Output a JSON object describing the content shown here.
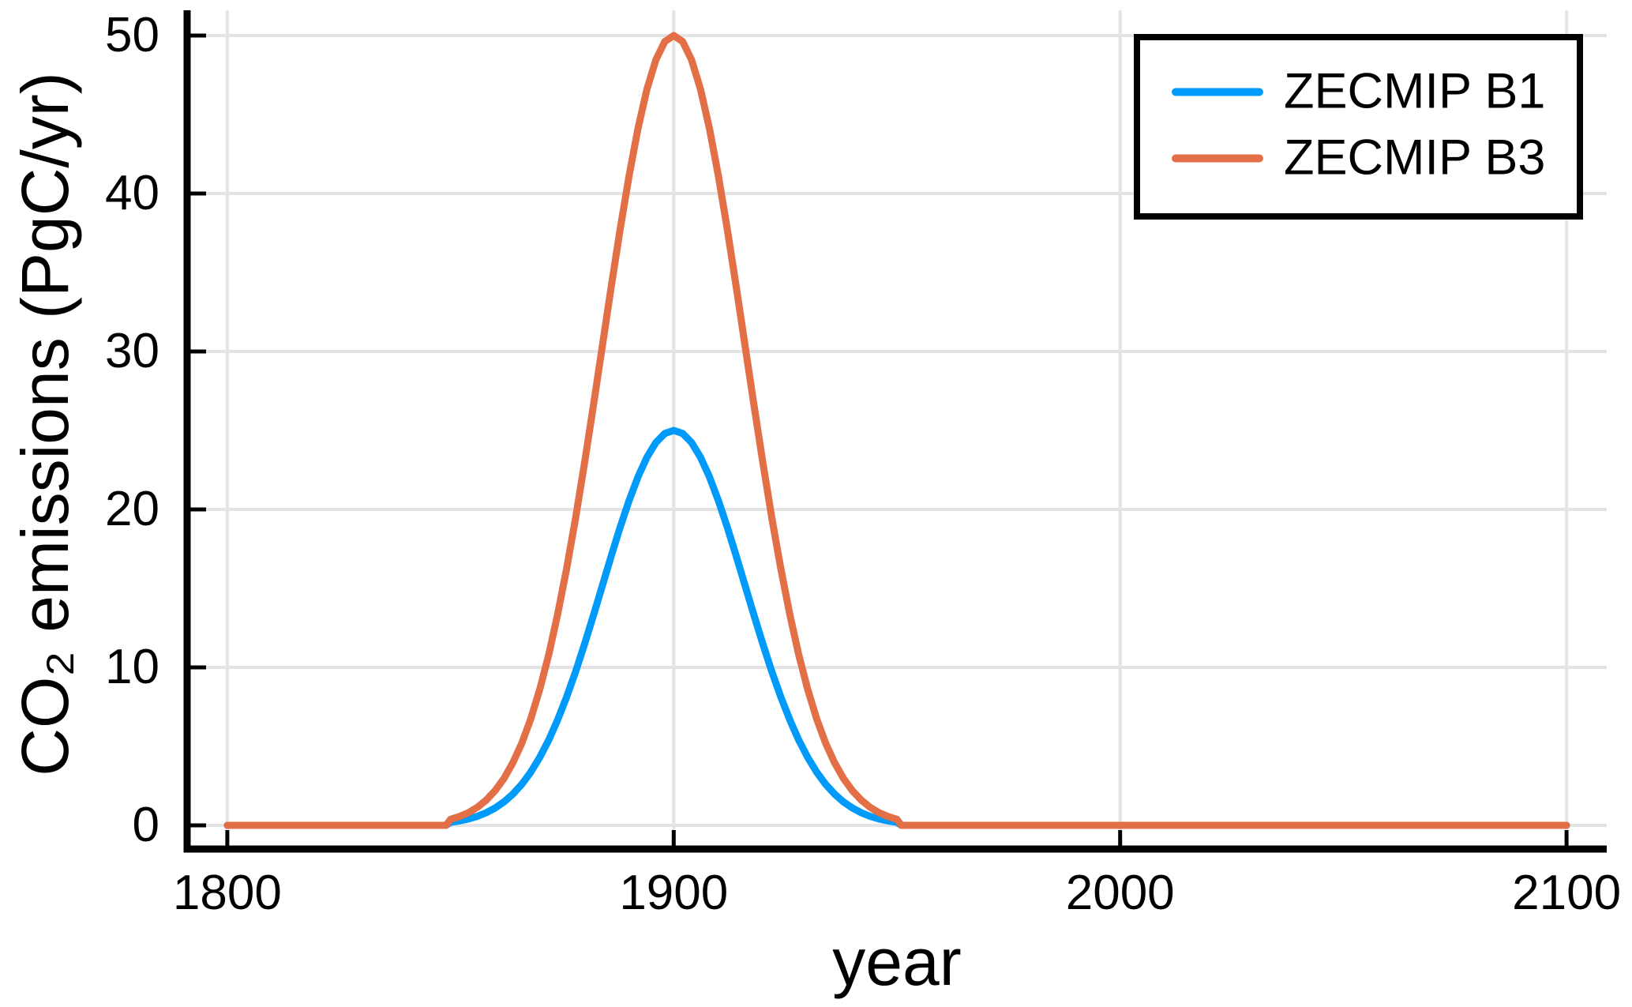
{
  "figure": {
    "background": "#FFFFFF"
  },
  "chart_data": {
    "type": "line",
    "title": "",
    "xlabel": "year",
    "ylabel": "CO₂ emissions (PgC/yr)",
    "xlim": [
      1791,
      2109
    ],
    "ylim": [
      -1.5,
      51.6
    ],
    "xticks": [
      1800,
      1900,
      2000,
      2100
    ],
    "xtick_labels": [
      "1800",
      "1900",
      "2000",
      "2100"
    ],
    "yticks": [
      0,
      10,
      20,
      30,
      40,
      50
    ],
    "ytick_labels": [
      "0",
      "10",
      "20",
      "30",
      "40",
      "50"
    ],
    "grid": true,
    "grid_color": "#E4E4E4",
    "axis_color": "#000000",
    "legend": {
      "position": "top-right",
      "background": "#FFFFFF",
      "border_color": "#000000",
      "entries": [
        {
          "label": "ZECMIP B1",
          "color": "#009AFA"
        },
        {
          "label": "ZECMIP B3",
          "color": "#E36F47"
        }
      ]
    },
    "series": [
      {
        "name": "ZECMIP B1",
        "color": "#009AFA",
        "x": [
          1800,
          1849,
          1850,
          1852,
          1854,
          1856,
          1858,
          1860,
          1862,
          1864,
          1866,
          1868,
          1870,
          1872,
          1874,
          1876,
          1878,
          1880,
          1882,
          1884,
          1886,
          1888,
          1890,
          1892,
          1894,
          1896,
          1898,
          1900,
          1902,
          1904,
          1906,
          1908,
          1910,
          1912,
          1914,
          1916,
          1918,
          1920,
          1922,
          1924,
          1926,
          1928,
          1930,
          1932,
          1934,
          1936,
          1938,
          1940,
          1942,
          1944,
          1946,
          1948,
          1950,
          1951,
          2100
        ],
        "y": [
          0,
          0,
          0.19,
          0.28,
          0.4,
          0.57,
          0.8,
          1.1,
          1.49,
          1.99,
          2.61,
          3.38,
          4.31,
          5.4,
          6.68,
          8.12,
          9.71,
          11.45,
          13.28,
          15.16,
          17.05,
          18.87,
          20.56,
          22.06,
          23.3,
          24.23,
          24.81,
          25.0,
          24.81,
          24.23,
          23.3,
          22.06,
          20.56,
          18.87,
          17.05,
          15.16,
          13.28,
          11.45,
          9.71,
          8.12,
          6.68,
          5.4,
          4.31,
          3.38,
          2.61,
          1.99,
          1.49,
          1.1,
          0.8,
          0.57,
          0.4,
          0.28,
          0.19,
          0,
          0
        ]
      },
      {
        "name": "ZECMIP B3",
        "color": "#E36F47",
        "x": [
          1800,
          1849,
          1850,
          1852,
          1854,
          1856,
          1858,
          1860,
          1862,
          1864,
          1866,
          1868,
          1870,
          1872,
          1874,
          1876,
          1878,
          1880,
          1882,
          1884,
          1886,
          1888,
          1890,
          1892,
          1894,
          1896,
          1898,
          1900,
          1902,
          1904,
          1906,
          1908,
          1910,
          1912,
          1914,
          1916,
          1918,
          1920,
          1922,
          1924,
          1926,
          1928,
          1930,
          1932,
          1934,
          1936,
          1938,
          1940,
          1942,
          1944,
          1946,
          1948,
          1950,
          1951,
          2100
        ],
        "y": [
          0,
          0,
          0.38,
          0.56,
          0.8,
          1.14,
          1.6,
          2.2,
          2.98,
          3.98,
          5.22,
          6.76,
          8.62,
          10.8,
          13.36,
          16.24,
          19.42,
          22.9,
          26.56,
          30.32,
          34.1,
          37.74,
          41.12,
          44.12,
          46.6,
          48.46,
          49.62,
          50.0,
          49.62,
          48.46,
          46.6,
          44.12,
          41.12,
          37.74,
          34.1,
          30.32,
          26.56,
          22.9,
          19.42,
          16.24,
          13.36,
          10.8,
          8.62,
          6.76,
          5.22,
          3.98,
          2.98,
          2.2,
          1.6,
          1.14,
          0.8,
          0.56,
          0.38,
          0,
          0
        ]
      }
    ]
  }
}
